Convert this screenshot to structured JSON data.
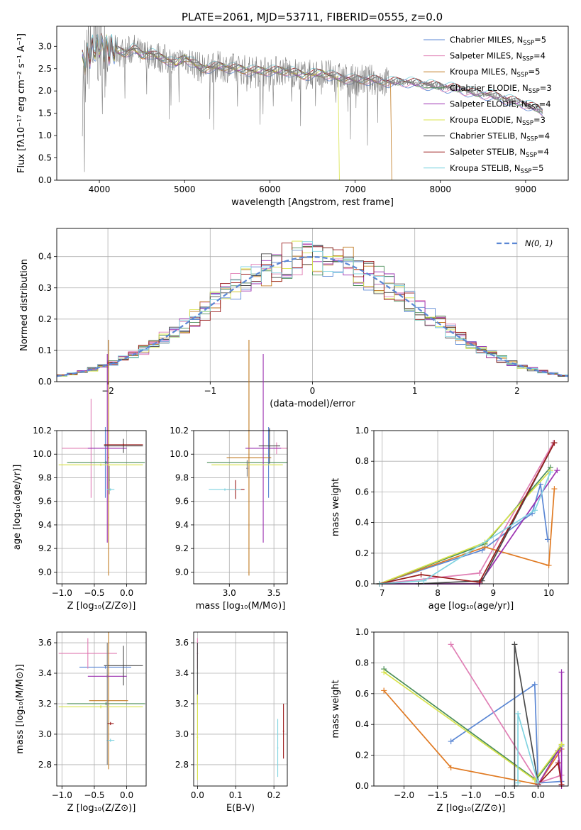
{
  "figure": {
    "title": "PLATE=2061, MJD=53711, FIBERID=0555, z=0.0"
  },
  "chart_data": [
    {
      "type": "line",
      "panel": "spectrum",
      "title": "PLATE=2061, MJD=53711, FIBERID=0555, z=0.0",
      "xlabel": "wavelength [Angstrom, rest frame]",
      "ylabel": "Flux [fλ10⁻¹⁷ erg cm⁻² s⁻¹ A⁻¹]",
      "xlim": [
        3500,
        9500
      ],
      "ylim": [
        0,
        3.45
      ],
      "xticks": [
        4000,
        5000,
        6000,
        7000,
        8000,
        9000
      ],
      "yticks": [
        0.0,
        0.5,
        1.0,
        1.5,
        2.0,
        2.5,
        3.0
      ],
      "grid": false,
      "legend_position": "top-right",
      "data_series": {
        "name": "data",
        "color": "#808080",
        "x": [
          3800,
          3900,
          4000,
          4100,
          4200,
          4300,
          4400,
          4500,
          4600,
          4700,
          4800,
          4900,
          5000,
          5200,
          5400,
          5600,
          5800,
          6000,
          6200,
          6400,
          6600,
          6800,
          7000,
          7200,
          7400,
          7600,
          7800,
          8000,
          8200,
          8400,
          8600,
          8800,
          9000,
          9200
        ],
        "y": [
          2.6,
          2.9,
          3.0,
          2.95,
          2.9,
          2.85,
          2.95,
          2.8,
          2.85,
          2.75,
          2.7,
          2.6,
          2.75,
          2.5,
          2.55,
          2.5,
          2.45,
          2.45,
          2.45,
          2.35,
          2.4,
          2.3,
          2.25,
          2.25,
          2.2,
          2.2,
          2.15,
          2.1,
          2.05,
          1.95,
          1.9,
          1.8,
          1.7,
          1.55
        ]
      },
      "series": [
        {
          "name": "Chabrier MILES, N$_{SSP}$=5",
          "label_main": "Chabrier MILES, N",
          "label_sub": "SSP",
          "label_end": "=5",
          "color": "#5b87d4"
        },
        {
          "name": "Salpeter MILES, N$_{SSP}$=4",
          "label_main": "Salpeter MILES, N",
          "label_sub": "SSP",
          "label_end": "=4",
          "color": "#e07fb5"
        },
        {
          "name": "Kroupa MILES, N$_{SSP}$=5",
          "label_main": "Kroupa MILES, N",
          "label_sub": "SSP",
          "label_end": "=5",
          "color": "#c07a22"
        },
        {
          "name": "Chabrier ELODIE, N$_{SSP}$=3",
          "label_main": "Chabrier ELODIE, N",
          "label_sub": "SSP",
          "label_end": "=3",
          "color": "#4d8f5a"
        },
        {
          "name": "Salpeter ELODIE, N$_{SSP}$=4",
          "label_main": "Salpeter ELODIE, N",
          "label_sub": "SSP",
          "label_end": "=4",
          "color": "#9b30b0"
        },
        {
          "name": "Kroupa ELODIE, N$_{SSP}$=3",
          "label_main": "Kroupa ELODIE, N",
          "label_sub": "SSP",
          "label_end": "=3",
          "color": "#d8e34a"
        },
        {
          "name": "Chabrier STELIB, N$_{SSP}$=4",
          "label_main": "Chabrier STELIB, N",
          "label_sub": "SSP",
          "label_end": "=4",
          "color": "#4a4a4a"
        },
        {
          "name": "Salpeter STELIB, N$_{SSP}$=4",
          "label_main": "Salpeter STELIB, N",
          "label_sub": "SSP",
          "label_end": "=4",
          "color": "#9b1c1c"
        },
        {
          "name": "Kroupa STELIB, N$_{SSP}$=5",
          "label_main": "Kroupa STELIB, N",
          "label_sub": "SSP",
          "label_end": "=5",
          "color": "#7fd3e0"
        }
      ]
    },
    {
      "type": "line",
      "panel": "residuals",
      "xlabel": "(data-model)/error",
      "ylabel": "Normed distribution",
      "xlim": [
        -2.5,
        2.5
      ],
      "ylim": [
        0,
        0.49
      ],
      "xticks": [
        -2,
        -1,
        0,
        1,
        2
      ],
      "yticks": [
        0.0,
        0.1,
        0.2,
        0.3,
        0.4
      ],
      "grid": true,
      "legend_position": "top-right",
      "legend_label": "N(0, 1)",
      "gaussian_color": "#5b87d4",
      "hist_bin_width": 0.1,
      "hist_colors": [
        "#5b87d4",
        "#e07fb5",
        "#c07a22",
        "#4d8f5a",
        "#9b30b0",
        "#d8e34a",
        "#4a4a4a",
        "#9b1c1c",
        "#7fd3e0"
      ]
    },
    {
      "type": "scatter",
      "panel": "age-Z",
      "xlabel": "Z [log₁₀(Z/Z⊙)]",
      "ylabel": "age  [log₁₀(age/yr)]",
      "xlim": [
        -1.08,
        0.3
      ],
      "ylim": [
        8.9,
        10.2
      ],
      "xticks": [
        -1.0,
        -0.5,
        0.0
      ],
      "yticks": [
        9.0,
        9.2,
        9.4,
        9.6,
        9.8,
        10.0,
        10.2
      ],
      "grid": true,
      "points": [
        {
          "color": "#5b87d4",
          "x": -0.33,
          "xerr": 0.03,
          "y": 9.93,
          "yerr": 0.3
        },
        {
          "color": "#e07fb5",
          "x": -0.55,
          "xerr": 0.45,
          "y": 10.05,
          "yerr": 0.42
        },
        {
          "color": "#c07a22",
          "x": -0.28,
          "xerr": 0.01,
          "y": 9.97,
          "yerr": 1.0
        },
        {
          "color": "#4d8f5a",
          "x": -0.32,
          "xerr": 0.6,
          "y": 9.93,
          "yerr": 0.01
        },
        {
          "color": "#9b30b0",
          "x": -0.3,
          "xerr": 0.3,
          "y": 10.05,
          "yerr": 0.8
        },
        {
          "color": "#d8e34a",
          "x": -0.4,
          "xerr": 0.65,
          "y": 9.91,
          "yerr": 0.01
        },
        {
          "color": "#4a4a4a",
          "x": -0.05,
          "xerr": 0.3,
          "y": 10.07,
          "yerr": 0.06
        },
        {
          "color": "#9b1c1c",
          "x": -0.05,
          "xerr": 0.3,
          "y": 10.08,
          "yerr": 0.01
        },
        {
          "color": "#7fd3e0",
          "x": -0.25,
          "xerr": 0.06,
          "y": 9.7,
          "yerr": 0.01
        },
        {
          "color": "#808080",
          "x": -0.27,
          "xerr": 0.01,
          "y": 9.78,
          "yerr": 0.12
        }
      ]
    },
    {
      "type": "scatter",
      "panel": "age-mass",
      "xlabel": "mass [log₁₀(M/M⊙)]",
      "ylabel": "",
      "xlim": [
        2.6,
        3.65
      ],
      "ylim": [
        8.9,
        10.2
      ],
      "xticks": [
        3.0,
        3.5
      ],
      "yticks": [
        9.0,
        9.2,
        9.4,
        9.6,
        9.8,
        10.0,
        10.2
      ],
      "grid": true,
      "points": [
        {
          "color": "#5b87d4",
          "x": 3.44,
          "xerr": 0.01,
          "y": 9.93,
          "yerr": 0.3
        },
        {
          "color": "#e07fb5",
          "x": 3.53,
          "xerr": 0.12,
          "y": 10.05,
          "yerr": 0.05
        },
        {
          "color": "#c07a22",
          "x": 3.22,
          "xerr": 0.25,
          "y": 9.97,
          "yerr": 1.0
        },
        {
          "color": "#4d8f5a",
          "x": 3.2,
          "xerr": 0.45,
          "y": 9.93,
          "yerr": 0.01
        },
        {
          "color": "#9b30b0",
          "x": 3.38,
          "xerr": 0.2,
          "y": 10.05,
          "yerr": 0.8
        },
        {
          "color": "#d8e34a",
          "x": 3.2,
          "xerr": 0.4,
          "y": 9.91,
          "yerr": 0.01
        },
        {
          "color": "#4a4a4a",
          "x": 3.45,
          "xerr": 0.12,
          "y": 10.07,
          "yerr": 0.15
        },
        {
          "color": "#9b1c1c",
          "x": 3.07,
          "xerr": 0.1,
          "y": 9.7,
          "yerr": 0.08
        },
        {
          "color": "#7fd3e0",
          "x": 2.95,
          "xerr": 0.18,
          "y": 9.7,
          "yerr": 0.01
        },
        {
          "color": "#808080",
          "x": 3.2,
          "xerr": 0.01,
          "y": 9.88,
          "yerr": 0.07
        }
      ]
    },
    {
      "type": "line",
      "panel": "massweight-age",
      "xlabel": "age  [log₁₀(age/yr)]",
      "ylabel": "mass weight",
      "xlim": [
        6.85,
        10.35
      ],
      "ylim": [
        0,
        1.0
      ],
      "xticks": [
        7,
        8,
        9,
        10
      ],
      "yticks": [
        0.0,
        0.2,
        0.4,
        0.6,
        0.8,
        1.0
      ],
      "grid": true,
      "series": [
        {
          "color": "#5b87d4",
          "x": [
            6.95,
            8.8,
            9.7,
            9.85,
            9.98
          ],
          "y": [
            0.0,
            0.22,
            0.46,
            0.65,
            0.29
          ]
        },
        {
          "color": "#e07fb5",
          "x": [
            6.95,
            8.75,
            10.08
          ],
          "y": [
            0.0,
            0.07,
            0.92
          ]
        },
        {
          "color": "#e07a22",
          "x": [
            6.95,
            8.85,
            10.0,
            10.1
          ],
          "y": [
            0.0,
            0.24,
            0.12,
            0.62
          ]
        },
        {
          "color": "#4d8f5a",
          "x": [
            6.95,
            8.85,
            10.03
          ],
          "y": [
            0.0,
            0.26,
            0.76
          ]
        },
        {
          "color": "#9b30b0",
          "x": [
            6.95,
            8.75,
            10.15
          ],
          "y": [
            0.0,
            0.0,
            0.74
          ]
        },
        {
          "color": "#d8e34a",
          "x": [
            6.95,
            8.85,
            10.03
          ],
          "y": [
            0.0,
            0.27,
            0.74
          ]
        },
        {
          "color": "#4a4a4a",
          "x": [
            7.65,
            8.8,
            10.1
          ],
          "y": [
            0.0,
            0.02,
            0.92
          ]
        },
        {
          "color": "#9b1c1c",
          "x": [
            6.95,
            7.7,
            8.75,
            10.1
          ],
          "y": [
            0.0,
            0.06,
            0.01,
            0.92
          ]
        },
        {
          "color": "#7fd3e0",
          "x": [
            6.95,
            7.75,
            9.75,
            10.03
          ],
          "y": [
            0.0,
            0.02,
            0.48,
            0.73
          ]
        }
      ]
    },
    {
      "type": "scatter",
      "panel": "mass-Z",
      "xlabel": "Z [log₁₀(Z/Z⊙)]",
      "ylabel": "mass [log₁₀(M/M⊙)]",
      "xlim": [
        -1.08,
        0.3
      ],
      "ylim": [
        2.66,
        3.67
      ],
      "xticks": [
        -1.0,
        -0.5,
        0.0
      ],
      "yticks": [
        2.8,
        3.0,
        3.2,
        3.4,
        3.6
      ],
      "grid": true,
      "points": [
        {
          "color": "#5b87d4",
          "x": -0.33,
          "xerr": 0.4,
          "y": 3.44,
          "yerr": 0.01
        },
        {
          "color": "#e07fb5",
          "x": -0.6,
          "xerr": 0.45,
          "y": 3.53,
          "yerr": 0.1
        },
        {
          "color": "#c07a22",
          "x": -0.28,
          "xerr": 0.3,
          "y": 3.22,
          "yerr": 0.45
        },
        {
          "color": "#4d8f5a",
          "x": -0.32,
          "xerr": 0.6,
          "y": 3.2,
          "yerr": 0.01
        },
        {
          "color": "#9b30b0",
          "x": -0.3,
          "xerr": 0.3,
          "y": 3.38,
          "yerr": 0.01
        },
        {
          "color": "#d8e34a",
          "x": -0.4,
          "xerr": 0.65,
          "y": 3.18,
          "yerr": 0.01
        },
        {
          "color": "#4a4a4a",
          "x": -0.05,
          "xerr": 0.3,
          "y": 3.45,
          "yerr": 0.13
        },
        {
          "color": "#9b1c1c",
          "x": -0.25,
          "xerr": 0.05,
          "y": 3.07,
          "yerr": 0.01
        },
        {
          "color": "#7fd3e0",
          "x": -0.25,
          "xerr": 0.06,
          "y": 2.96,
          "yerr": 0.01
        },
        {
          "color": "#808080",
          "x": -0.3,
          "xerr": 0.01,
          "y": 3.2,
          "yerr": 0.4
        }
      ]
    },
    {
      "type": "scatter",
      "panel": "mass-EBV",
      "xlabel": "E(B-V)",
      "ylabel": "",
      "xlim": [
        -0.01,
        0.235
      ],
      "ylim": [
        2.66,
        3.67
      ],
      "xticks": [
        0.0,
        0.1,
        0.2
      ],
      "yticks": [
        2.8,
        3.0,
        3.2,
        3.4,
        3.6
      ],
      "grid": true,
      "points": [
        {
          "color": "#e07fb5",
          "x": 0.0,
          "y": 3.53,
          "yerr": 0.1
        },
        {
          "color": "#4a4a4a",
          "x": 0.0,
          "y": 3.4,
          "yerr": 0.2
        },
        {
          "color": "#d8e34a",
          "x": 0.0,
          "y": 2.98,
          "yerr": 0.28
        },
        {
          "color": "#7fd3e0",
          "x": 0.21,
          "y": 2.91,
          "yerr": 0.19
        },
        {
          "color": "#9b1c1c",
          "x": 0.225,
          "y": 3.02,
          "yerr": 0.18
        }
      ]
    },
    {
      "type": "line",
      "panel": "massweight-Z",
      "xlabel": "Z [log₁₀(Z/Z⊙)]",
      "ylabel": "mass weight",
      "xlim": [
        -2.45,
        0.45
      ],
      "ylim": [
        0,
        1.0
      ],
      "xticks": [
        -2.0,
        -1.5,
        -1.0,
        -0.5,
        0.0
      ],
      "yticks": [
        0.0,
        0.2,
        0.4,
        0.6,
        0.8,
        1.0
      ],
      "grid": true,
      "series": [
        {
          "color": "#5b87d4",
          "x": [
            -1.3,
            -0.05,
            0.0,
            0.35
          ],
          "y": [
            0.29,
            0.66,
            0.02,
            0.03
          ]
        },
        {
          "color": "#e07fb5",
          "x": [
            -1.3,
            0.0,
            0.35
          ],
          "y": [
            0.92,
            0.02,
            0.07
          ]
        },
        {
          "color": "#e07a22",
          "x": [
            -2.3,
            -1.3,
            0.0,
            0.35
          ],
          "y": [
            0.62,
            0.12,
            0.01,
            0.24
          ]
        },
        {
          "color": "#4d8f5a",
          "x": [
            -2.3,
            -0.03,
            0.35
          ],
          "y": [
            0.76,
            0.04,
            0.26
          ]
        },
        {
          "color": "#9b30b0",
          "x": [
            0.0,
            0.3,
            0.35,
            0.35
          ],
          "y": [
            0.01,
            0.23,
            0.0,
            0.74
          ]
        },
        {
          "color": "#d8e34a",
          "x": [
            -2.3,
            -0.05,
            0.35
          ],
          "y": [
            0.74,
            0.04,
            0.27
          ]
        },
        {
          "color": "#4a4a4a",
          "x": [
            -0.35,
            -0.35,
            0.0
          ],
          "y": [
            0.0,
            0.92,
            0.02
          ]
        },
        {
          "color": "#9b1c1c",
          "x": [
            0.0,
            0.3,
            0.35
          ],
          "y": [
            0.01,
            0.15,
            0.01
          ]
        },
        {
          "color": "#7fd3e0",
          "x": [
            -0.3,
            -0.3,
            0.0
          ],
          "y": [
            0.02,
            0.47,
            0.02
          ]
        }
      ]
    }
  ]
}
